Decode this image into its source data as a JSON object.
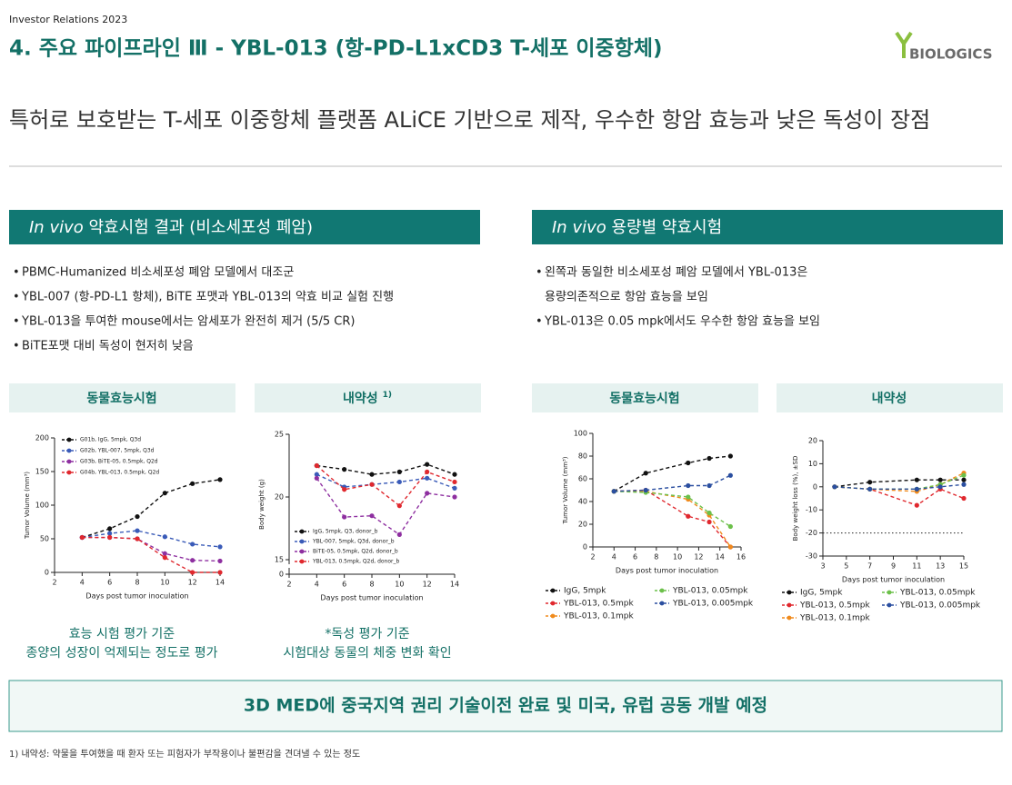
{
  "header": {
    "tag": "Investor Relations 2023",
    "title": "4. 주요 파이프라인 Ⅲ - YBL-013 (항-PD-L1xCD3 T-세포 이중항체)",
    "logo": "BIOLOGICS"
  },
  "headline": "특허로 보호받는 T-세포 이중항체 플랫폼 ALiCE 기반으로 제작, 우수한 항암 효능과 낮은 독성이 장점",
  "sections": [
    {
      "title_italic": "In vivo",
      "title": "약효시험 결과 (비소세포성 폐암)",
      "bullets": [
        [
          "PBMC-Humanized  비소세포성 폐암 모델에서 대조군"
        ],
        [
          "YBL-007 (항-PD-L1 항체),  BiTE 포맷과 YBL-013의 약효 비교 실험 진행"
        ],
        [
          "YBL-013을 투여한 mouse에서는 암세포가 완전히 제거 (5/5 CR)"
        ],
        [
          "BiTE포맷 대비 독성이 현저히 낮음"
        ]
      ],
      "panels": [
        {
          "title": "동물효능시험",
          "caption": [
            "효능 시험 평가 기준",
            "종양의 성장이 억제되는  정도로 평가"
          ]
        },
        {
          "title": "내약성",
          "note": "1)",
          "caption": [
            "*독성 평가 기준",
            "시험대상 동물의 체중 변화 확인"
          ]
        }
      ]
    },
    {
      "title_italic": "In vivo",
      "title": "용량별 약효시험",
      "bullets": [
        [
          "왼쪽과 동일한 비소세포성 폐암 모델에서 YBL-013은",
          "용량의존적으로 항암 효능을 보임"
        ],
        [
          "YBL-013은 0.05 mpk에서도 우수한 항암 효능을 보임"
        ]
      ],
      "panels": [
        {
          "title": "동물효능시험"
        },
        {
          "title": "내약성"
        }
      ]
    }
  ],
  "banner": "3D MED에 중국지역 권리 기술이전 완료 및 미국, 유럽 공동 개발 예정",
  "footnote": "1) 내약성: 약물을 투여했을 때 환자 또는 피험자가 부작용이나 불편감을 견뎌낼 수 있는 정도",
  "chart_data": [
    {
      "type": "line",
      "x_label": "Days post tumor inoculation",
      "y_label": "Tumor Volume (mm³)",
      "x": [
        4,
        6,
        8,
        10,
        12,
        14
      ],
      "xlim": [
        2,
        14
      ],
      "xticks": [
        2,
        4,
        6,
        8,
        10,
        12,
        14
      ],
      "ylim": [
        0,
        200
      ],
      "yticks": [
        0,
        50,
        100,
        150,
        200
      ],
      "series": [
        {
          "name": "G01b, IgG, 5mpk, Q3d",
          "color": "#111111",
          "values": [
            52,
            65,
            83,
            118,
            132,
            138
          ]
        },
        {
          "name": "G02b, YBL-007, 5mpk, Q3d",
          "color": "#3a5bb8",
          "values": [
            52,
            58,
            62,
            53,
            42,
            38
          ]
        },
        {
          "name": "G03b, BiTE-05, 0.5mpk, Q2d",
          "color": "#8e2fa0",
          "values": [
            52,
            52,
            50,
            28,
            18,
            17
          ]
        },
        {
          "name": "G04b, YBL-013, 0.5mpk, Q2d",
          "color": "#e0282e",
          "values": [
            52,
            52,
            50,
            22,
            0,
            0
          ]
        }
      ]
    },
    {
      "type": "line",
      "x_label": "Days post tumor inoculation",
      "y_label": "Body weight (g)",
      "broken_axis": true,
      "x": [
        4,
        6,
        8,
        10,
        12,
        14
      ],
      "xlim": [
        2,
        14
      ],
      "xticks": [
        2,
        4,
        6,
        8,
        10,
        12,
        14
      ],
      "ylim": [
        0,
        25
      ],
      "yticks": [
        0,
        15,
        20,
        25
      ],
      "series": [
        {
          "name": "IgG, 5mpk, Q3, donor_b",
          "color": "#111111",
          "values": [
            22.5,
            22.2,
            21.8,
            22.0,
            22.6,
            21.8
          ]
        },
        {
          "name": "YBL-007, 5mpk, Q3d, donor_b",
          "color": "#3a5bb8",
          "values": [
            21.8,
            20.8,
            21.0,
            21.2,
            21.5,
            20.7
          ]
        },
        {
          "name": "BiTE-05, 0.5mpk, Q2d, donor_b",
          "color": "#8e2fa0",
          "values": [
            21.5,
            18.4,
            18.5,
            17.0,
            20.3,
            20.0
          ]
        },
        {
          "name": "YBL-013, 0.5mpk, Q2d, donor_b",
          "color": "#e0282e",
          "values": [
            22.5,
            20.6,
            21.0,
            19.3,
            22.0,
            21.2
          ]
        }
      ]
    },
    {
      "type": "line",
      "x_label": "Days post tumor inoculation",
      "y_label": "Tumor Volume (mm³)",
      "x": [
        4,
        7,
        11,
        13,
        15
      ],
      "xlim": [
        2,
        16
      ],
      "xticks": [
        2,
        4,
        6,
        8,
        10,
        12,
        14,
        16
      ],
      "ylim": [
        0,
        100
      ],
      "yticks": [
        0,
        20,
        40,
        60,
        80,
        100
      ],
      "series": [
        {
          "name": "IgG, 5mpk",
          "color": "#111111",
          "values": [
            49,
            65,
            74,
            78,
            80
          ]
        },
        {
          "name": "YBL-013, 0.5mpk",
          "color": "#e0282e",
          "values": [
            49,
            50,
            27,
            22,
            0
          ]
        },
        {
          "name": "YBL-013, 0.1mpk",
          "color": "#f08a1c",
          "values": [
            49,
            49,
            42,
            28,
            0
          ]
        },
        {
          "name": "YBL-013, 0.05mpk",
          "color": "#6cc04a",
          "values": [
            49,
            48,
            44,
            30,
            18
          ]
        },
        {
          "name": "YBL-013, 0.005mpk",
          "color": "#2b4fa0",
          "values": [
            49,
            50,
            54,
            54,
            63
          ]
        }
      ]
    },
    {
      "type": "line",
      "x_label": "Days post tumor inoculation",
      "y_label": "Body weight loss (%), ±SD",
      "reference_line": -20,
      "x": [
        4,
        7,
        11,
        13,
        15
      ],
      "xlim": [
        3,
        15
      ],
      "xticks": [
        3,
        5,
        7,
        9,
        11,
        13,
        15
      ],
      "ylim": [
        -30,
        20
      ],
      "yticks": [
        -30,
        -20,
        -10,
        0,
        10,
        20
      ],
      "series": [
        {
          "name": "IgG, 5mpk",
          "color": "#111111",
          "values": [
            0,
            2,
            3,
            3,
            3
          ]
        },
        {
          "name": "YBL-013, 0.5mpk",
          "color": "#e0282e",
          "values": [
            0,
            -1,
            -8,
            -1,
            -5
          ]
        },
        {
          "name": "YBL-013, 0.1mpk",
          "color": "#f08a1c",
          "values": [
            0,
            -1,
            -2,
            1,
            6
          ]
        },
        {
          "name": "YBL-013, 0.05mpk",
          "color": "#6cc04a",
          "values": [
            0,
            -1,
            -1,
            1,
            5
          ]
        },
        {
          "name": "YBL-013, 0.005mpk",
          "color": "#2b4fa0",
          "values": [
            0,
            -1,
            -1,
            0,
            1
          ]
        }
      ]
    }
  ]
}
